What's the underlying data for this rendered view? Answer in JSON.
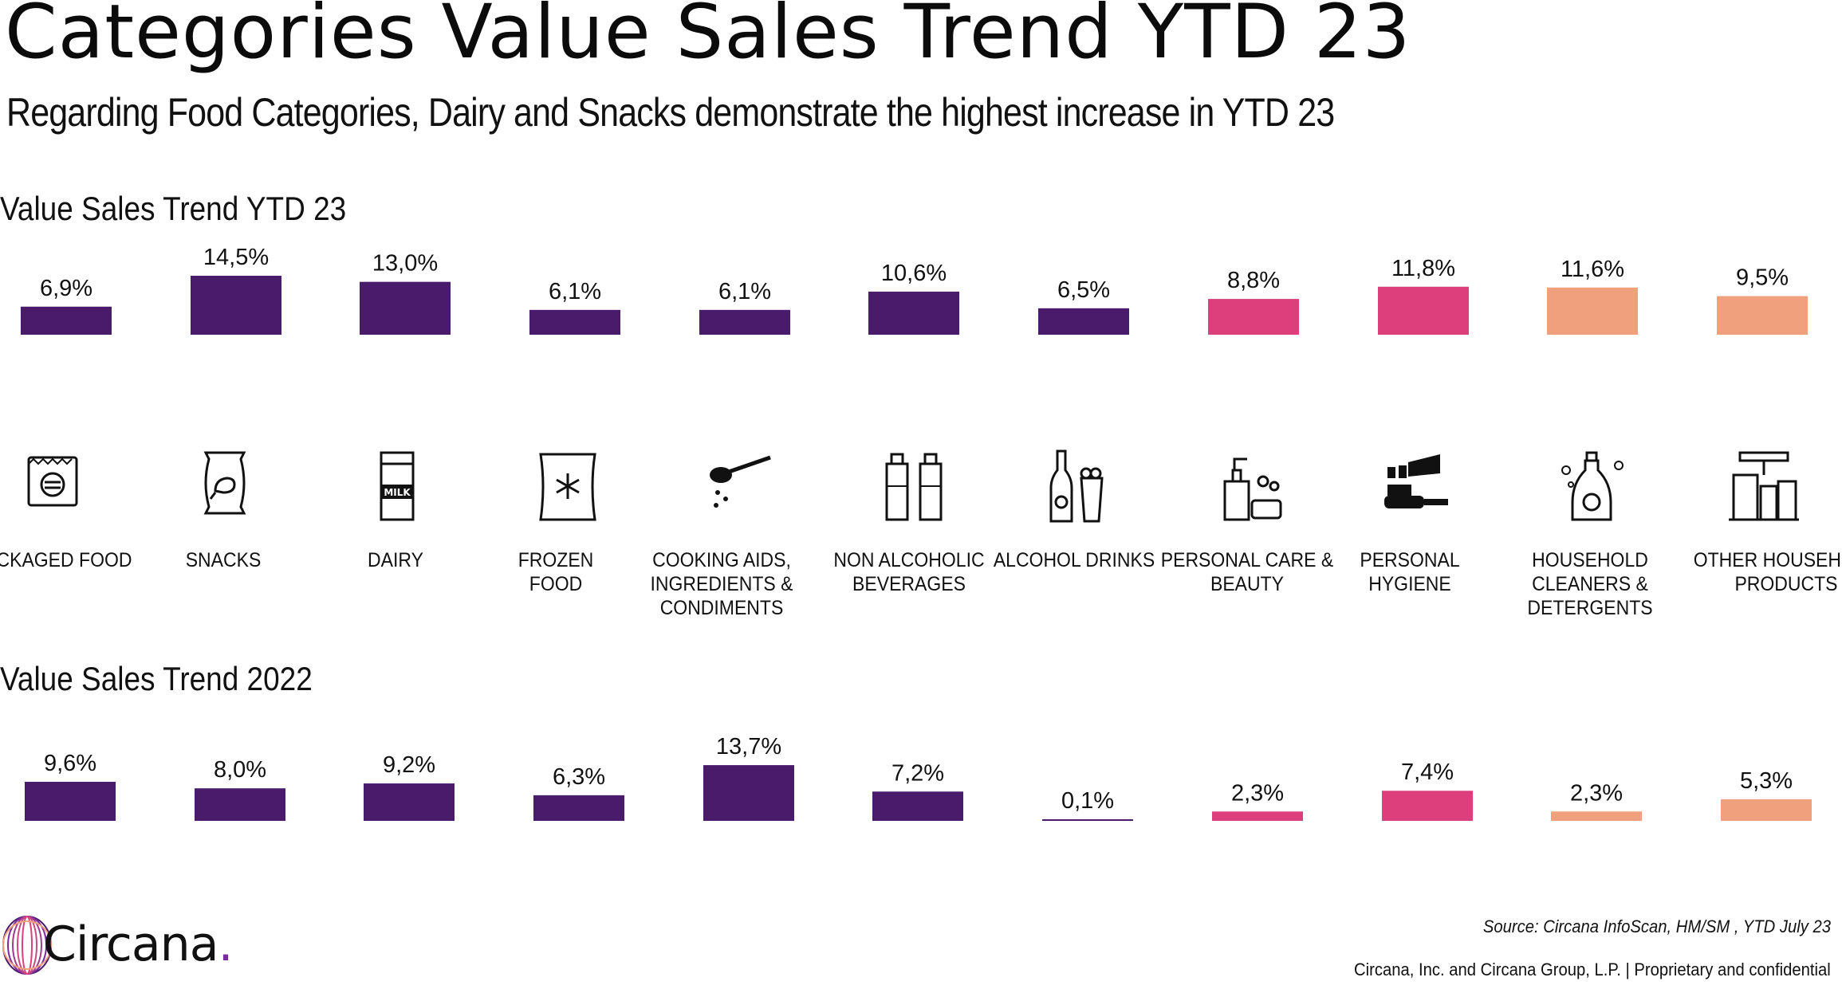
{
  "header": {
    "title": "Categories Value Sales Trend YTD 23",
    "subtitle": "Regarding Food Categories, Dairy and Snacks demonstrate the highest increase in YTD 23"
  },
  "categories": [
    {
      "label": "PACKAGED FOOD",
      "icon": "packaged-food-icon"
    },
    {
      "label": "SNACKS",
      "icon": "snacks-bag-icon"
    },
    {
      "label": "DAIRY",
      "icon": "milk-carton-icon"
    },
    {
      "label": "FROZEN\nFOOD",
      "icon": "snowflake-bag-icon"
    },
    {
      "label": "COOKING AIDS,\nINGREDIENTS &\nCONDIMENTS",
      "icon": "spoon-icon"
    },
    {
      "label": "NON ALCOHOLIC\nBEVERAGES",
      "icon": "water-bottles-icon"
    },
    {
      "label": "ALCOHOL DRINKS",
      "icon": "beer-bottle-glass-icon"
    },
    {
      "label": "PERSONAL CARE &\nBEAUTY",
      "icon": "soap-dispenser-icon"
    },
    {
      "label": "PERSONAL\nHYGIENE",
      "icon": "toothbrush-paste-icon"
    },
    {
      "label": "HOUSEHOLD CLEANERS &\nDETERGENTS",
      "icon": "detergent-bottle-icon"
    },
    {
      "label": "OTHER HOUSEHOLD\nPRODUCTS",
      "icon": "cleaning-supplies-icon"
    }
  ],
  "chart_data": [
    {
      "type": "bar",
      "title": "Value Sales Trend YTD 23",
      "categories": [
        "PACKAGED FOOD",
        "SNACKS",
        "DAIRY",
        "FROZEN FOOD",
        "COOKING AIDS, INGREDIENTS & CONDIMENTS",
        "NON ALCOHOLIC BEVERAGES",
        "ALCOHOL DRINKS",
        "PERSONAL CARE & BEAUTY",
        "PERSONAL HYGIENE",
        "HOUSEHOLD CLEANERS & DETERGENTS",
        "OTHER HOUSEHOLD PRODUCTS"
      ],
      "values": [
        6.9,
        14.5,
        13.0,
        6.1,
        6.1,
        10.6,
        6.5,
        8.8,
        11.8,
        11.6,
        9.5
      ],
      "labels": [
        "6,9%",
        "14,5%",
        "13,0%",
        "6,1%",
        "6,1%",
        "10,6%",
        "6,5%",
        "8,8%",
        "11,8%",
        "11,6%",
        "9,5%"
      ],
      "colors": [
        "#4a1a6b",
        "#4a1a6b",
        "#4a1a6b",
        "#4a1a6b",
        "#4a1a6b",
        "#4a1a6b",
        "#4a1a6b",
        "#dc3f7c",
        "#dc3f7c",
        "#f0a07c",
        "#f0a07c"
      ],
      "unit": "%",
      "grid": false,
      "ylim": [
        0,
        14.5
      ]
    },
    {
      "type": "bar",
      "title": "Value Sales Trend 2022",
      "categories": [
        "PACKAGED FOOD",
        "SNACKS",
        "DAIRY",
        "FROZEN FOOD",
        "COOKING AIDS, INGREDIENTS & CONDIMENTS",
        "NON ALCOHOLIC BEVERAGES",
        "ALCOHOL DRINKS",
        "PERSONAL CARE & BEAUTY",
        "PERSONAL HYGIENE",
        "HOUSEHOLD CLEANERS & DETERGENTS",
        "OTHER HOUSEHOLD PRODUCTS"
      ],
      "values": [
        9.6,
        8.0,
        9.2,
        6.3,
        13.7,
        7.2,
        0.1,
        2.3,
        7.4,
        2.3,
        5.3
      ],
      "labels": [
        "9,6%",
        "8,0%",
        "9,2%",
        "6,3%",
        "13,7%",
        "7,2%",
        "0,1%",
        "2,3%",
        "7,4%",
        "2,3%",
        "5,3%"
      ],
      "colors": [
        "#4a1a6b",
        "#4a1a6b",
        "#4a1a6b",
        "#4a1a6b",
        "#4a1a6b",
        "#4a1a6b",
        "#4a1a6b",
        "#dc3f7c",
        "#dc3f7c",
        "#f0a07c",
        "#f0a07c"
      ],
      "unit": "%",
      "grid": false,
      "ylim": [
        0,
        14.5
      ]
    }
  ],
  "footer": {
    "brand": "Circana",
    "brand_dot": ".",
    "source": "Source: Circana InfoScan, HM/SM , YTD July 23",
    "legal": "Circana, Inc. and Circana Group, L.P. |  Proprietary and confidential"
  },
  "colors": {
    "purple": "#4a1a6b",
    "pink": "#dc3f7c",
    "peach": "#f0a07c",
    "logo": "#7a2a9a"
  }
}
